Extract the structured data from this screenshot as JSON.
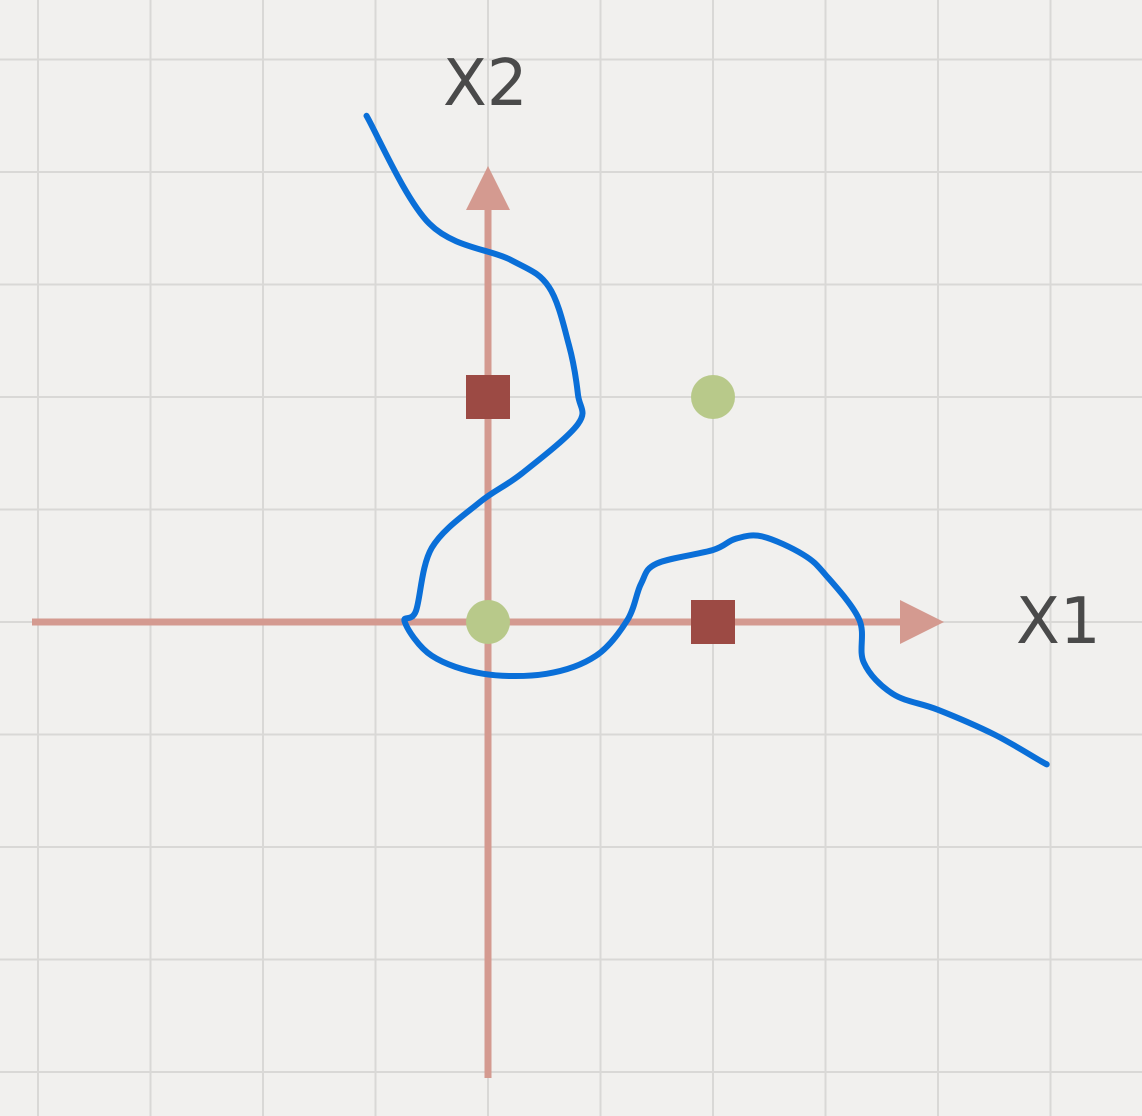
{
  "chart_data": {
    "type": "scatter",
    "title": "",
    "xlabel": "X1",
    "ylabel": "X2",
    "grid": true,
    "xlim": [
      -2,
      2
    ],
    "ylim": [
      -2,
      2
    ],
    "colors": {
      "background": "#f1f0ee",
      "grid": "#d9d8d6",
      "axis": "#d49a90",
      "class_square": "#9c4a44",
      "class_circle": "#b8c98a",
      "boundary": "#0a6fd8"
    },
    "series": [
      {
        "marker": "square",
        "color": "#9c4a44",
        "points": [
          [
            0,
            1
          ],
          [
            1,
            0
          ]
        ]
      },
      {
        "marker": "circle",
        "color": "#b8c98a",
        "points": [
          [
            0,
            0
          ],
          [
            1,
            1
          ]
        ]
      }
    ],
    "annotations": [
      {
        "kind": "decision-boundary",
        "color": "#0a6fd8",
        "points": [
          [
            -0.54,
            2.25
          ],
          [
            -0.26,
            1.77
          ],
          [
            0.1,
            1.61
          ],
          [
            0.27,
            1.49
          ],
          [
            0.36,
            1.23
          ],
          [
            0.4,
            1.01
          ],
          [
            0.4,
            0.88
          ],
          [
            0.15,
            0.66
          ],
          [
            -0.04,
            0.53
          ],
          [
            -0.25,
            0.33
          ],
          [
            -0.32,
            0.05
          ],
          [
            -0.37,
            0.0
          ],
          [
            -0.25,
            -0.15
          ],
          [
            -0.02,
            -0.23
          ],
          [
            0.26,
            -0.23
          ],
          [
            0.48,
            -0.15
          ],
          [
            0.62,
            0.01
          ],
          [
            0.68,
            0.17
          ],
          [
            0.75,
            0.26
          ],
          [
            1.0,
            0.32
          ],
          [
            1.1,
            0.37
          ],
          [
            1.22,
            0.38
          ],
          [
            1.4,
            0.3
          ],
          [
            1.5,
            0.21
          ],
          [
            1.65,
            0.01
          ],
          [
            1.67,
            -0.18
          ],
          [
            1.8,
            -0.32
          ],
          [
            2.0,
            -0.39
          ],
          [
            2.25,
            -0.5
          ],
          [
            2.46,
            -0.62
          ],
          [
            2.48,
            -0.63
          ]
        ]
      }
    ]
  }
}
